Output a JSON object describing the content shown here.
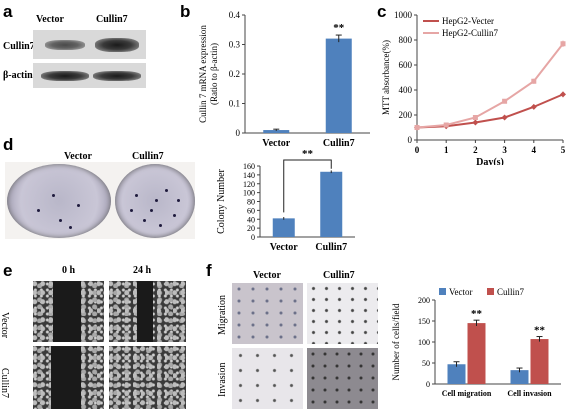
{
  "panel_labels": [
    "a",
    "b",
    "c",
    "d",
    "e",
    "f"
  ],
  "panel_a": {
    "lanes": [
      "Vector",
      "Cullin7"
    ],
    "rows": [
      "Cullin7",
      "β-actin"
    ]
  },
  "panel_d_images": {
    "cols": [
      "Vector",
      "Cullin7"
    ]
  },
  "panel_e": {
    "times": [
      "0 h",
      "24 h"
    ],
    "rows": [
      "Vector",
      "Cullin7"
    ]
  },
  "panel_f_images": {
    "cols": [
      "Vector",
      "Cullin7"
    ],
    "rows": [
      "Migration",
      "Invasion"
    ]
  },
  "chart_data": [
    {
      "panel": "b",
      "type": "bar",
      "categories": [
        "Vector",
        "Cullin7"
      ],
      "values": [
        0.01,
        0.32
      ],
      "errors": [
        0.003,
        0.012
      ],
      "ylabel": "Cullin 7 mRNA expression",
      "ylabel2": "(Ratio to β-actin)",
      "ylim": [
        0,
        0.4
      ],
      "yticks": [
        "0",
        "0.1",
        "0.2",
        "0.3",
        "0.4"
      ],
      "significance": "**",
      "color": "#4f81bd"
    },
    {
      "panel": "c",
      "type": "line",
      "x": [
        0,
        1,
        2,
        3,
        4,
        5
      ],
      "xticks": [
        "0",
        "1",
        "2",
        "3",
        "4",
        "5"
      ],
      "series": [
        {
          "name": "HepG2-Vecter",
          "values": [
            100,
            110,
            140,
            180,
            265,
            365
          ],
          "errors": [
            8,
            8,
            10,
            12,
            18,
            22
          ],
          "color": "#c0504d"
        },
        {
          "name": "HepG2-Cullin7",
          "values": [
            100,
            120,
            180,
            310,
            470,
            770
          ],
          "errors": [
            8,
            8,
            10,
            15,
            20,
            25
          ],
          "color": "#e6a6a5"
        }
      ],
      "xlabel": "Day(s)",
      "ylabel": "MTT absorbance(%)",
      "ylim": [
        0,
        1000
      ],
      "yticks": [
        "0",
        "200",
        "400",
        "600",
        "800",
        "1000"
      ],
      "legend": "top-left"
    },
    {
      "panel": "d",
      "type": "bar",
      "categories": [
        "Vector",
        "Cullin7"
      ],
      "values": [
        42,
        147
      ],
      "errors": [
        3,
        3
      ],
      "ylabel": "Colony Number",
      "ylim": [
        0,
        160
      ],
      "yticks": [
        "0",
        "20",
        "40",
        "60",
        "80",
        "100",
        "120",
        "140",
        "160"
      ],
      "significance": "**",
      "color": "#4f81bd"
    },
    {
      "panel": "f",
      "type": "bar",
      "categories": [
        "Cell migration",
        "Cell invasion"
      ],
      "series": [
        {
          "name": "Vector",
          "values": [
            47,
            33
          ],
          "errors": [
            6,
            5
          ],
          "color": "#4f81bd"
        },
        {
          "name": "Cullin7",
          "values": [
            145,
            107
          ],
          "errors": [
            7,
            6
          ],
          "color": "#c0504d"
        }
      ],
      "ylabel": "Number of cells/field",
      "ylim": [
        0,
        200
      ],
      "yticks": [
        "0",
        "50",
        "100",
        "150",
        "200"
      ],
      "significance": [
        "**",
        "**"
      ],
      "legend": "top"
    }
  ]
}
